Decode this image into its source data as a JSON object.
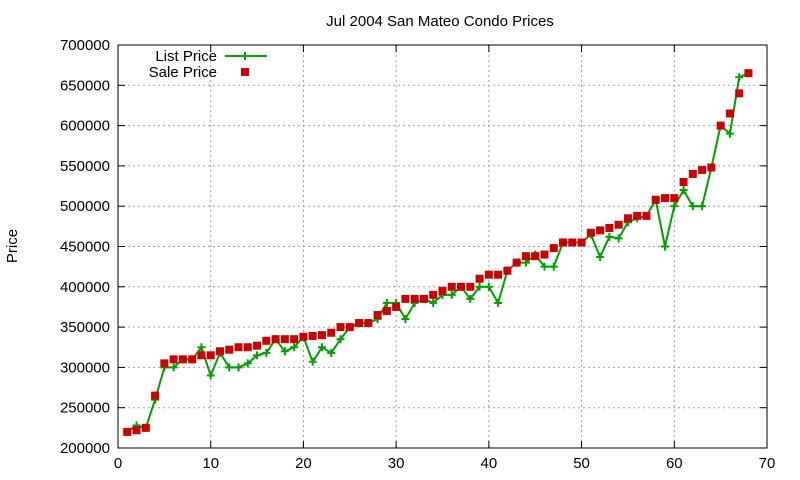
{
  "chart_data": {
    "type": "line",
    "title": "Jul 2004 San Mateo Condo Prices",
    "xlabel": "",
    "ylabel": "Price",
    "xlim": [
      0,
      70
    ],
    "ylim": [
      200000,
      700000
    ],
    "x_ticks": [
      0,
      10,
      20,
      30,
      40,
      50,
      60,
      70
    ],
    "y_ticks": [
      200000,
      250000,
      300000,
      350000,
      400000,
      450000,
      500000,
      550000,
      600000,
      650000,
      700000
    ],
    "grid": true,
    "legend_position": "top-left",
    "series": [
      {
        "name": "List Price",
        "style": "line-plus",
        "color": "#00a000",
        "x": [
          1,
          2,
          3,
          4,
          5,
          6,
          7,
          8,
          9,
          10,
          11,
          12,
          13,
          14,
          15,
          16,
          17,
          18,
          19,
          20,
          21,
          22,
          23,
          24,
          25,
          26,
          27,
          28,
          29,
          30,
          31,
          32,
          33,
          34,
          35,
          36,
          37,
          38,
          39,
          40,
          41,
          42,
          43,
          44,
          45,
          46,
          47,
          48,
          49,
          50,
          51,
          52,
          53,
          54,
          55,
          56,
          57,
          58,
          59,
          60,
          61,
          62,
          63,
          64,
          65,
          66,
          67,
          68
        ],
        "y": [
          220000,
          228000,
          225000,
          260000,
          300000,
          300000,
          310000,
          310000,
          325000,
          290000,
          318000,
          300000,
          300000,
          305000,
          315000,
          318000,
          335000,
          320000,
          325000,
          338000,
          307000,
          325000,
          318000,
          335000,
          350000,
          355000,
          355000,
          360000,
          380000,
          380000,
          360000,
          380000,
          385000,
          380000,
          390000,
          390000,
          400000,
          385000,
          400000,
          400000,
          380000,
          420000,
          430000,
          430000,
          440000,
          425000,
          425000,
          455000,
          455000,
          455000,
          465000,
          437000,
          462000,
          460000,
          480000,
          485000,
          488000,
          508000,
          450000,
          500000,
          520000,
          500000,
          500000,
          548000,
          600000,
          590000,
          660000,
          665000
        ]
      },
      {
        "name": "Sale Price",
        "style": "square",
        "color": "#cc0000",
        "x": [
          1,
          2,
          3,
          4,
          5,
          6,
          7,
          8,
          9,
          10,
          11,
          12,
          13,
          14,
          15,
          16,
          17,
          18,
          19,
          20,
          21,
          22,
          23,
          24,
          25,
          26,
          27,
          28,
          29,
          30,
          31,
          32,
          33,
          34,
          35,
          36,
          37,
          38,
          39,
          40,
          41,
          42,
          43,
          44,
          45,
          46,
          47,
          48,
          49,
          50,
          51,
          52,
          53,
          54,
          55,
          56,
          57,
          58,
          59,
          60,
          61,
          62,
          63,
          64,
          65,
          66,
          67,
          68
        ],
        "y": [
          220000,
          222000,
          225000,
          265000,
          305000,
          310000,
          310000,
          310000,
          315000,
          315000,
          320000,
          322000,
          325000,
          325000,
          327000,
          333000,
          335000,
          335000,
          335000,
          338000,
          339000,
          340000,
          343000,
          350000,
          350000,
          355000,
          355000,
          365000,
          370000,
          375000,
          385000,
          385000,
          385000,
          390000,
          395000,
          400000,
          400000,
          400000,
          410000,
          415000,
          415000,
          420000,
          430000,
          438000,
          438000,
          440000,
          448000,
          455000,
          455000,
          455000,
          467000,
          470000,
          473000,
          477000,
          485000,
          488000,
          488000,
          508000,
          510000,
          510000,
          530000,
          540000,
          545000,
          548000,
          600000,
          615000,
          640000,
          665000
        ]
      }
    ]
  }
}
